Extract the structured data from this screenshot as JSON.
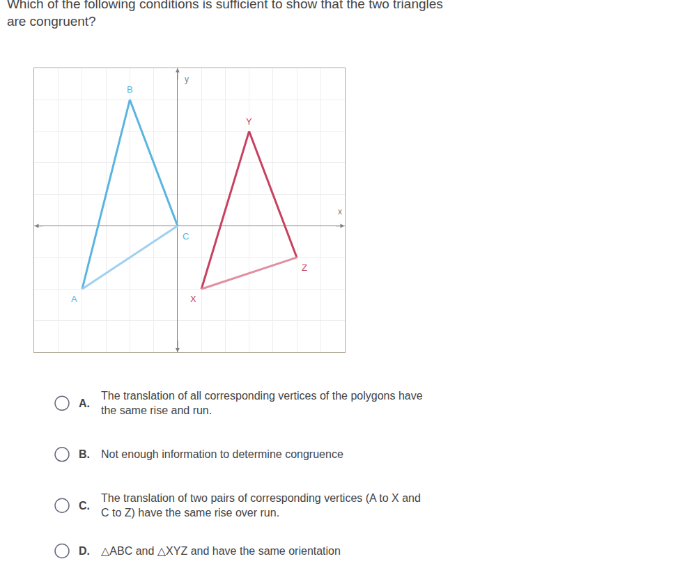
{
  "chart_data": {
    "type": "line",
    "title": "Which of the following conditions is sufficient to show that the two triangles\nare congruent?",
    "x_label": "x",
    "y_label": "y",
    "series": [
      {
        "x": [
          -4,
          -2,
          0
        ],
        "y": [
          -2,
          4,
          0
        ],
        "labels": [
          "A",
          "B",
          "C"
        ],
        "color": "#5ab4e0",
        "colors": [
          "#5ab4e0",
          "#5ab4e0",
          "#a0d0f0"
        ]
      },
      {
        "x": [
          1,
          3,
          5
        ],
        "y": [
          -2,
          3,
          -1
        ],
        "labels": [
          "X",
          "Y",
          "Z"
        ],
        "color": "#c84060",
        "colors": [
          "#c84060",
          "#c84060",
          "#e090a0"
        ]
      }
    ],
    "xlim": [
      -6,
      7
    ],
    "ylim": [
      -4,
      5
    ],
    "xticks": [
      -6,
      -5,
      -4,
      -3,
      -2,
      -1,
      0,
      1,
      2,
      3,
      4,
      5,
      6,
      7
    ],
    "yticks": [
      -4,
      -3,
      -2,
      -1,
      0,
      1,
      2,
      3,
      4,
      5
    ],
    "grid": true,
    "tick_labels": false,
    "annotations": [
      {
        "label": "A.",
        "text": "The translation of all corresponding vertices of the polygons have\nthe same rise and run."
      },
      {
        "label": "B.",
        "text": "Not enough information to determine congruence"
      },
      {
        "label": "C.",
        "text": "The translation of two pairs of corresponding vertices (A to X and\nC to Z) have the same rise over run."
      },
      {
        "label": "D.",
        "text": "△ABC and △XYZ and have the same orientation"
      }
    ]
  }
}
